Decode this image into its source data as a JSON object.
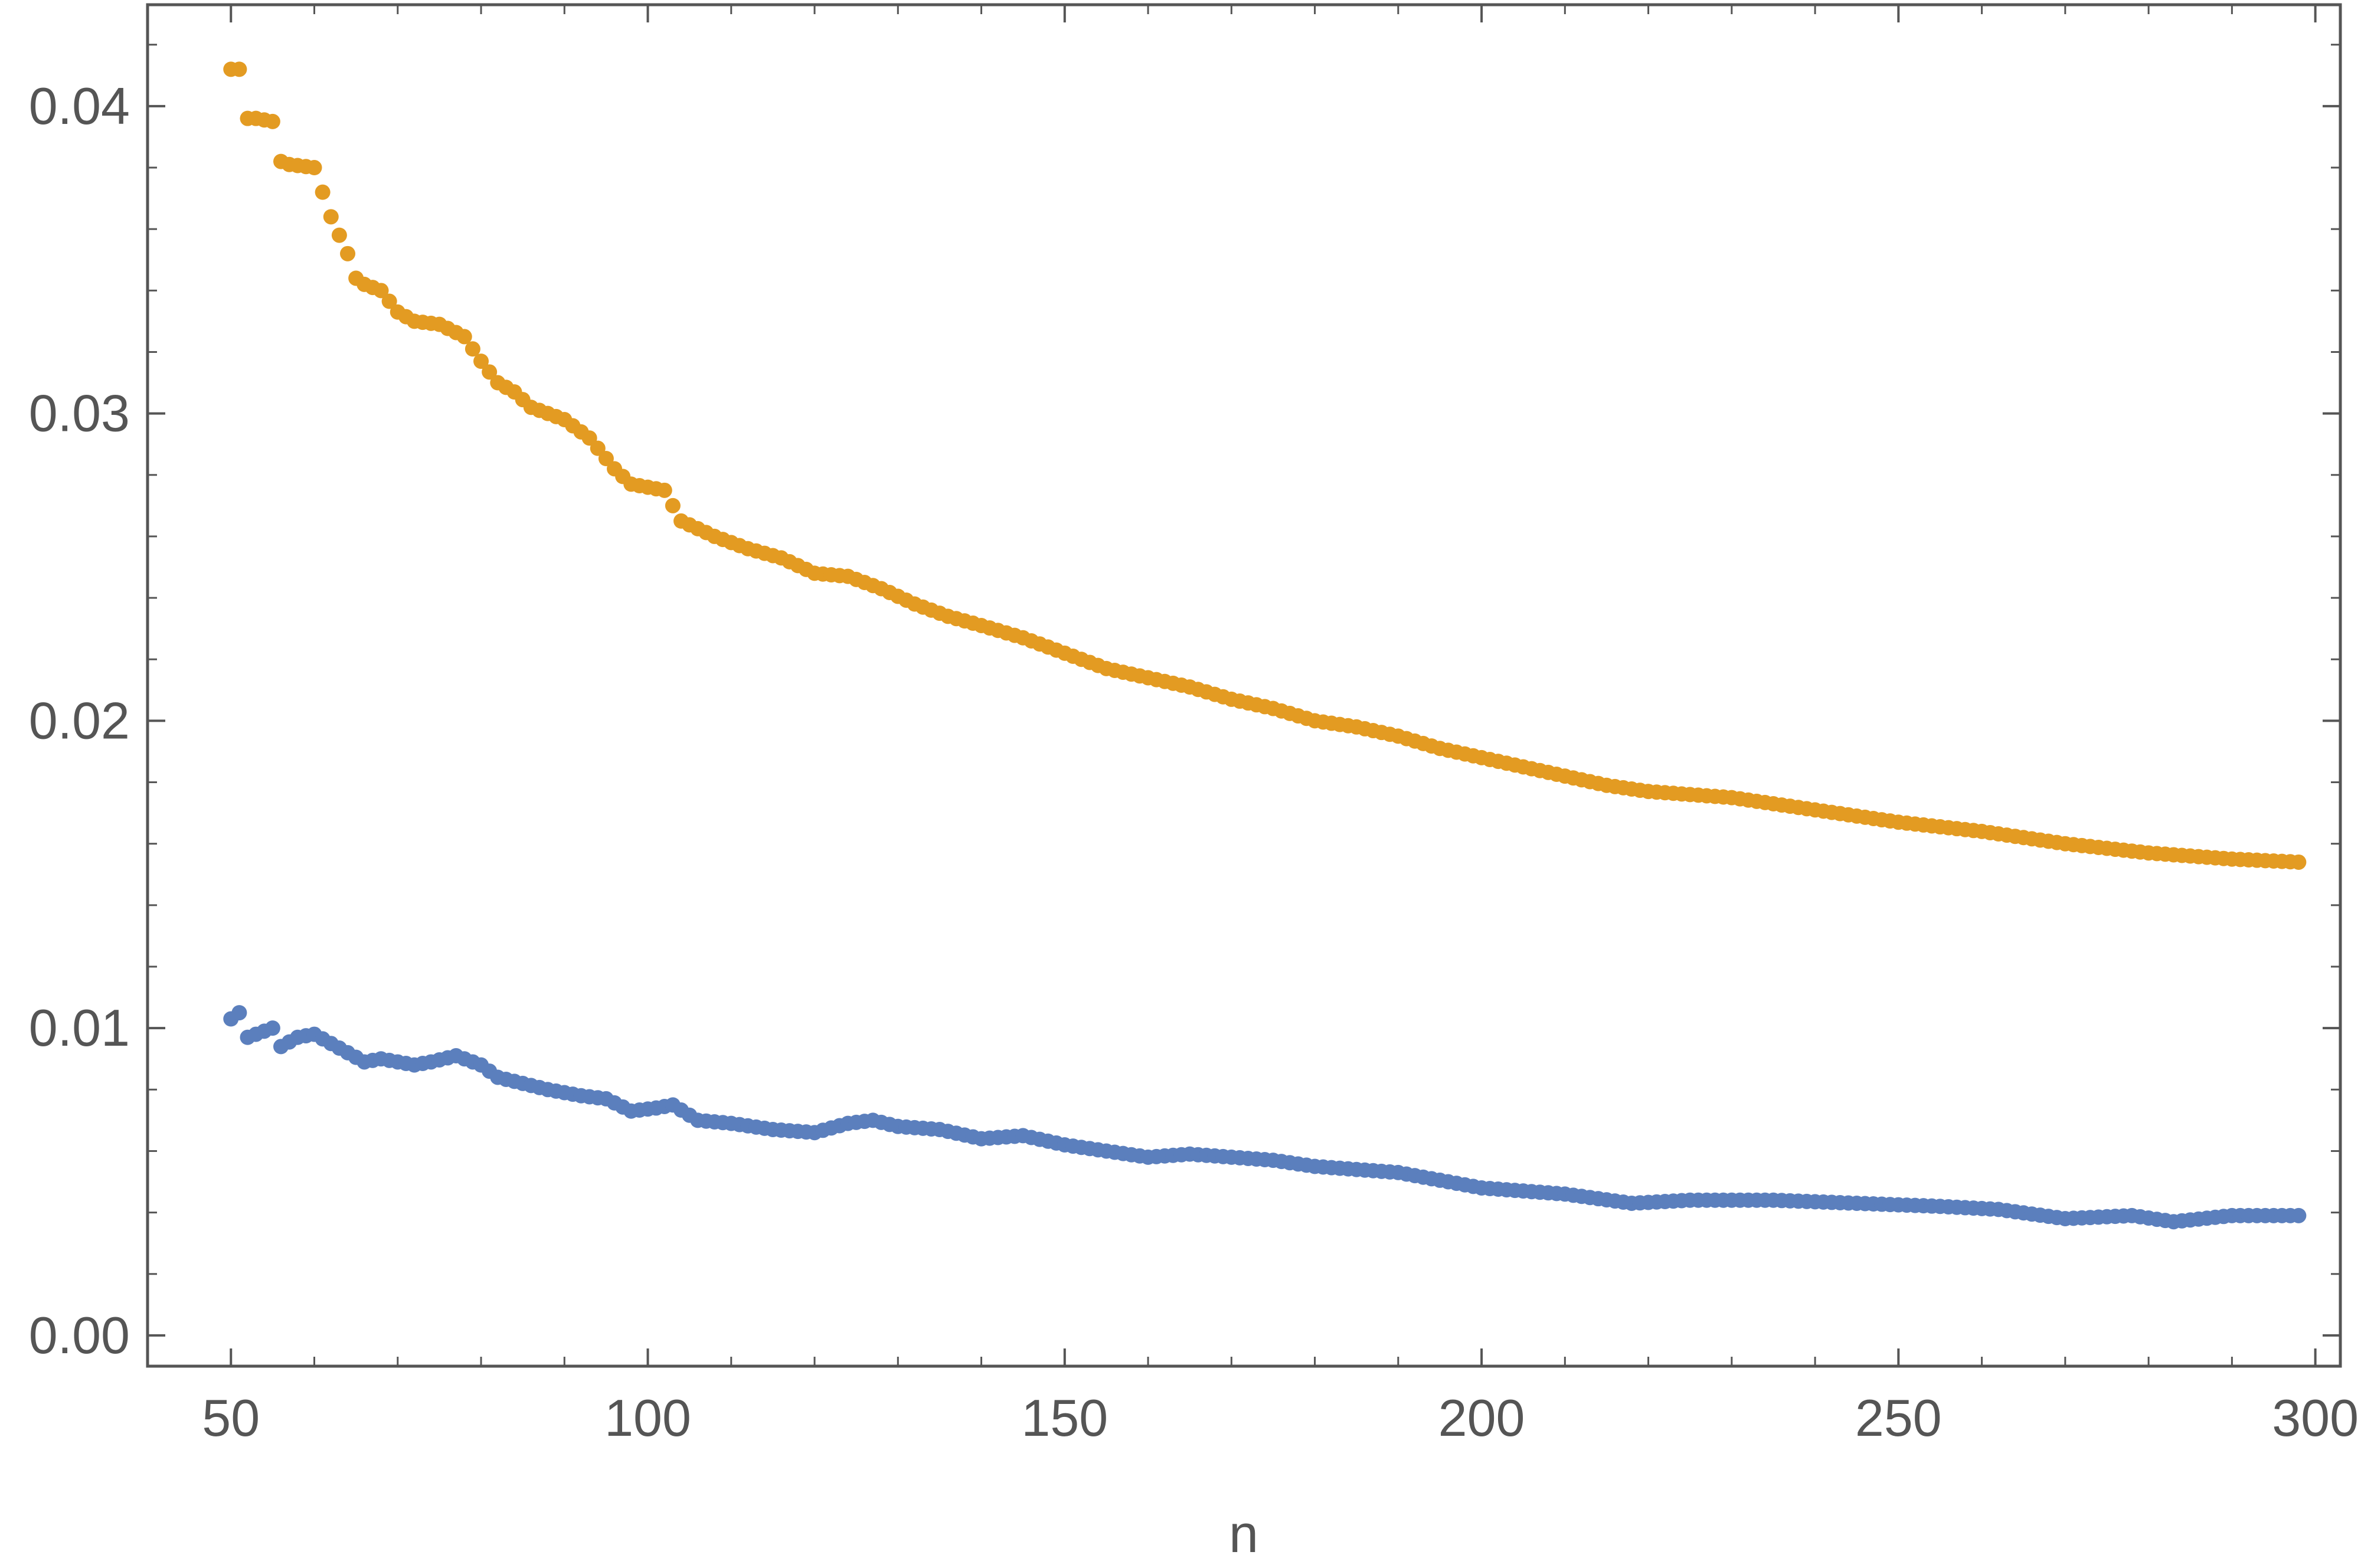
{
  "chart_data": {
    "type": "scatter",
    "title": "",
    "xlabel": "n",
    "ylabel": "",
    "xlim": [
      40,
      303
    ],
    "ylim": [
      -0.001,
      0.0433
    ],
    "x_ticks": [
      50,
      100,
      150,
      200,
      250,
      300
    ],
    "x_tick_labels": [
      "50",
      "100",
      "150",
      "200",
      "250",
      "300"
    ],
    "y_ticks": [
      0.0,
      0.01,
      0.02,
      0.03,
      0.04
    ],
    "y_tick_labels": [
      "0.00",
      "0.01",
      "0.02",
      "0.03",
      "0.04"
    ],
    "grid": false,
    "legend": "none",
    "colors": {
      "series_1": "#5b7fbd",
      "series_2": "#e39b22",
      "axis": "#555555"
    },
    "series": [
      {
        "x_start": 50,
        "x_end": 298,
        "y_anchors": [
          [
            50,
            0.0103
          ],
          [
            51,
            0.0105
          ],
          [
            52,
            0.0097
          ],
          [
            53,
            0.0098
          ],
          [
            55,
            0.01
          ],
          [
            56,
            0.0094
          ],
          [
            58,
            0.0097
          ],
          [
            60,
            0.0098
          ],
          [
            62,
            0.0095
          ],
          [
            64,
            0.0092
          ],
          [
            66,
            0.0089
          ],
          [
            68,
            0.009
          ],
          [
            70,
            0.0089
          ],
          [
            72,
            0.0088
          ],
          [
            74,
            0.0089
          ],
          [
            77,
            0.0091
          ],
          [
            80,
            0.0088
          ],
          [
            82,
            0.0084
          ],
          [
            85,
            0.0082
          ],
          [
            88,
            0.008
          ],
          [
            92,
            0.0078
          ],
          [
            95,
            0.0077
          ],
          [
            98,
            0.0073
          ],
          [
            101,
            0.0074
          ],
          [
            103,
            0.0075
          ],
          [
            106,
            0.007
          ],
          [
            110,
            0.0069
          ],
          [
            115,
            0.0067
          ],
          [
            120,
            0.0066
          ],
          [
            124,
            0.0069
          ],
          [
            127,
            0.007
          ],
          [
            130,
            0.0068
          ],
          [
            135,
            0.0067
          ],
          [
            140,
            0.0064
          ],
          [
            145,
            0.0065
          ],
          [
            150,
            0.0062
          ],
          [
            155,
            0.006
          ],
          [
            160,
            0.0058
          ],
          [
            165,
            0.0059
          ],
          [
            170,
            0.0058
          ],
          [
            175,
            0.0057
          ],
          [
            180,
            0.0055
          ],
          [
            190,
            0.0053
          ],
          [
            200,
            0.0048
          ],
          [
            210,
            0.0046
          ],
          [
            218,
            0.0043
          ],
          [
            225,
            0.0044
          ],
          [
            235,
            0.0044
          ],
          [
            245,
            0.0043
          ],
          [
            255,
            0.0042
          ],
          [
            262,
            0.0041
          ],
          [
            270,
            0.0038
          ],
          [
            278,
            0.0039
          ],
          [
            283,
            0.0037
          ],
          [
            290,
            0.0039
          ],
          [
            298,
            0.0039
          ]
        ]
      },
      {
        "x_start": 50,
        "x_end": 298,
        "y_anchors": [
          [
            50,
            0.0412
          ],
          [
            51,
            0.0412
          ],
          [
            52,
            0.0396
          ],
          [
            53,
            0.0396
          ],
          [
            55,
            0.0395
          ],
          [
            56,
            0.0382
          ],
          [
            57,
            0.0381
          ],
          [
            60,
            0.038
          ],
          [
            61,
            0.0372
          ],
          [
            62,
            0.0364
          ],
          [
            64,
            0.0352
          ],
          [
            65,
            0.0344
          ],
          [
            66,
            0.0342
          ],
          [
            68,
            0.034
          ],
          [
            70,
            0.0333
          ],
          [
            72,
            0.033
          ],
          [
            75,
            0.0329
          ],
          [
            78,
            0.0325
          ],
          [
            80,
            0.0317
          ],
          [
            82,
            0.031
          ],
          [
            84,
            0.0307
          ],
          [
            86,
            0.0302
          ],
          [
            90,
            0.0298
          ],
          [
            93,
            0.0292
          ],
          [
            96,
            0.0282
          ],
          [
            98,
            0.0277
          ],
          [
            102,
            0.0275
          ],
          [
            104,
            0.0265
          ],
          [
            108,
            0.026
          ],
          [
            112,
            0.0256
          ],
          [
            116,
            0.0253
          ],
          [
            120,
            0.0248
          ],
          [
            124,
            0.0247
          ],
          [
            128,
            0.0243
          ],
          [
            132,
            0.0238
          ],
          [
            136,
            0.0234
          ],
          [
            140,
            0.0231
          ],
          [
            145,
            0.0227
          ],
          [
            150,
            0.0222
          ],
          [
            155,
            0.0217
          ],
          [
            160,
            0.0214
          ],
          [
            165,
            0.0211
          ],
          [
            170,
            0.0207
          ],
          [
            175,
            0.0204
          ],
          [
            180,
            0.02
          ],
          [
            185,
            0.0198
          ],
          [
            190,
            0.0195
          ],
          [
            195,
            0.0191
          ],
          [
            200,
            0.0188
          ],
          [
            205,
            0.0185
          ],
          [
            210,
            0.0182
          ],
          [
            215,
            0.0179
          ],
          [
            220,
            0.0177
          ],
          [
            230,
            0.0175
          ],
          [
            240,
            0.0171
          ],
          [
            250,
            0.0167
          ],
          [
            260,
            0.0164
          ],
          [
            270,
            0.016
          ],
          [
            280,
            0.0157
          ],
          [
            290,
            0.0155
          ],
          [
            298,
            0.0154
          ]
        ]
      }
    ]
  }
}
